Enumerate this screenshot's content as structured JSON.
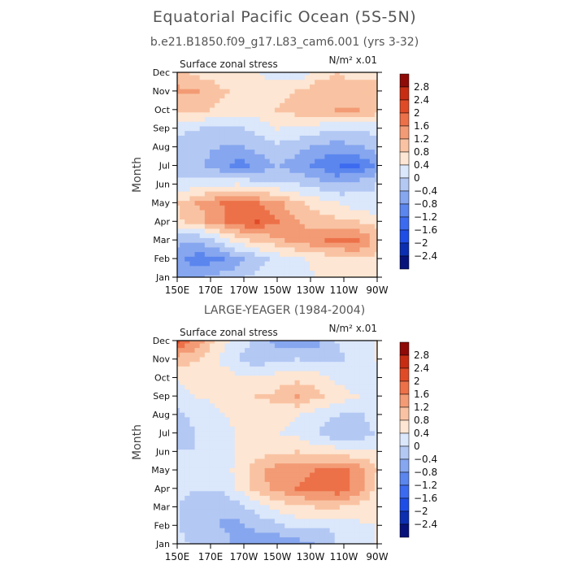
{
  "title": "Equatorial Pacific Ocean (5S-5N)",
  "subtitle": "b.e21.B1850.f09_g17.L83_cam6.001 (yrs 3-32)",
  "second_title": "LARGE-YEAGER (1984-2004)",
  "chart_data": [
    {
      "type": "heatmap",
      "panel_left_label": "Surface zonal stress",
      "units_label": "N/m² x.01",
      "ylabel": "Month",
      "x_ticks": [
        "150E",
        "170E",
        "170W",
        "150W",
        "130W",
        "110W",
        "90W"
      ],
      "y_ticks": [
        "Jan",
        "Feb",
        "Mar",
        "Apr",
        "May",
        "Jun",
        "Jul",
        "Aug",
        "Sep",
        "Oct",
        "Nov",
        "Dec"
      ],
      "legend_levels": [
        "2.8",
        "2.4",
        "2",
        "1.6",
        "1.2",
        "0.8",
        "0.4",
        "0",
        "−0.4",
        "−0.8",
        "−1.2",
        "−1.6",
        "−2",
        "−2.4",
        "−2.8"
      ],
      "values": [
        [
          -1.0,
          -0.9,
          -0.7,
          -0.5,
          -0.3,
          -0.2,
          -0.1,
          0.0,
          0.1,
          0.2,
          0.2
        ],
        [
          -1.1,
          -1.4,
          -1.3,
          -1.0,
          -0.6,
          -0.3,
          -0.1,
          0.1,
          0.2,
          0.3,
          0.3
        ],
        [
          -0.7,
          -0.8,
          -0.4,
          0.2,
          0.5,
          0.7,
          0.9,
          1.1,
          1.3,
          1.4,
          0.6
        ],
        [
          0.3,
          0.6,
          1.0,
          1.4,
          1.6,
          1.2,
          0.8,
          0.6,
          0.5,
          0.4,
          0.3
        ],
        [
          0.4,
          0.8,
          1.1,
          1.5,
          1.2,
          0.9,
          0.5,
          0.2,
          0.0,
          -0.2,
          -0.4
        ],
        [
          -0.3,
          -0.2,
          -0.1,
          0.0,
          -0.2,
          -0.3,
          -0.4,
          -0.6,
          -0.8,
          -0.6,
          -0.4
        ],
        [
          -0.6,
          -0.7,
          -1.0,
          -1.4,
          -1.1,
          -0.8,
          -1.0,
          -1.3,
          -1.6,
          -1.7,
          -1.1
        ],
        [
          -0.6,
          -0.7,
          -0.8,
          -0.9,
          -0.7,
          -0.5,
          -0.7,
          -0.9,
          -1.0,
          -0.9,
          -0.6
        ],
        [
          -0.3,
          -0.4,
          -0.5,
          -0.5,
          -0.3,
          0.0,
          -0.1,
          -0.2,
          -0.4,
          -0.3,
          -0.3
        ],
        [
          0.4,
          0.5,
          0.3,
          0.2,
          0.2,
          0.4,
          0.6,
          0.7,
          0.8,
          0.8,
          0.6
        ],
        [
          0.9,
          0.8,
          0.5,
          0.3,
          0.2,
          0.3,
          0.4,
          0.6,
          0.6,
          0.5,
          0.5
        ],
        [
          0.5,
          0.3,
          0.2,
          0.2,
          0.0,
          -0.2,
          -0.3,
          0.2,
          0.4,
          0.3,
          0.3
        ]
      ]
    },
    {
      "type": "heatmap",
      "panel_left_label": "Surface zonal stress",
      "units_label": "N/m² x.01",
      "ylabel": "Month",
      "x_ticks": [
        "150E",
        "170E",
        "170W",
        "150W",
        "130W",
        "110W",
        "90W"
      ],
      "y_ticks": [
        "Jan",
        "Feb",
        "Mar",
        "Apr",
        "May",
        "Jun",
        "Jul",
        "Aug",
        "Sep",
        "Oct",
        "Nov",
        "Dec"
      ],
      "legend_levels": [
        "2.8",
        "2.4",
        "2",
        "1.6",
        "1.2",
        "0.8",
        "0.4",
        "0",
        "−0.4",
        "−0.8",
        "−1.2",
        "−1.6",
        "−2",
        "−2.4",
        "−2.8"
      ],
      "values": [
        [
          -0.3,
          -0.5,
          -0.6,
          -0.9,
          -1.1,
          -1.2,
          -1.0,
          -0.8,
          -0.4,
          -0.2,
          0.0
        ],
        [
          -0.4,
          -0.6,
          -0.8,
          -0.9,
          -0.7,
          -0.5,
          -0.3,
          -0.4,
          -0.3,
          -0.1,
          0.0
        ],
        [
          -0.4,
          -0.7,
          -0.8,
          -0.6,
          -0.2,
          0.1,
          0.3,
          0.4,
          0.4,
          0.3,
          0.1
        ],
        [
          -0.3,
          -0.4,
          -0.4,
          0.0,
          0.6,
          0.9,
          1.2,
          1.3,
          1.5,
          1.0,
          0.3
        ],
        [
          -0.3,
          -0.4,
          -0.3,
          0.1,
          0.7,
          1.0,
          1.1,
          1.2,
          1.3,
          1.1,
          0.4
        ],
        [
          -0.4,
          -0.4,
          -0.2,
          0.0,
          0.2,
          0.3,
          0.4,
          0.3,
          0.2,
          0.1,
          0.0
        ],
        [
          -0.6,
          -0.4,
          -0.2,
          0.0,
          0.1,
          0.0,
          -0.1,
          -0.4,
          -0.7,
          -0.8,
          -0.3
        ],
        [
          -0.5,
          -0.3,
          -0.1,
          0.1,
          0.2,
          0.2,
          0.0,
          -0.2,
          -0.4,
          -0.5,
          -0.2
        ],
        [
          -0.2,
          0.0,
          0.1,
          0.3,
          0.4,
          0.5,
          0.8,
          0.5,
          0.2,
          0.0,
          -0.2
        ],
        [
          0.0,
          0.2,
          0.3,
          0.1,
          0.0,
          0.2,
          0.3,
          0.2,
          -0.1,
          -0.3,
          -0.2
        ],
        [
          0.6,
          0.4,
          0.0,
          -0.4,
          -0.6,
          -0.5,
          -0.4,
          -0.6,
          -0.5,
          -0.2,
          0.0
        ],
        [
          1.6,
          1.0,
          0.3,
          -0.2,
          -0.5,
          -1.0,
          -1.2,
          -0.9,
          -0.4,
          -0.2,
          0.0
        ]
      ]
    }
  ],
  "colors": {
    "levels": [
      "#07127a",
      "#0b2fb0",
      "#1f4ee6",
      "#3c6bf0",
      "#5b86ee",
      "#86a6ef",
      "#b3c8f3",
      "#dbe7fb",
      "#fde6d3",
      "#f9c3a3",
      "#f39b75",
      "#ec7149",
      "#e04b27",
      "#c72d13",
      "#8e0b08"
    ],
    "plot_background": "#fbeadf"
  }
}
